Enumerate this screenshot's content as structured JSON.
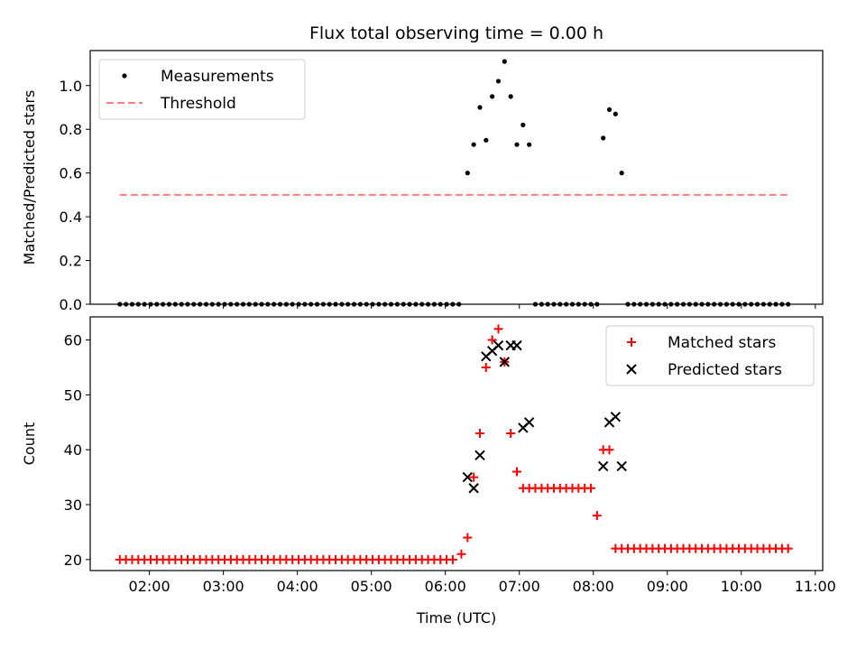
{
  "figure": {
    "title": "Flux total observing time = 0.00 h"
  },
  "chart_data": [
    {
      "type": "scatter",
      "ylabel": "Matched/Predicted stars",
      "xlim": [
        "01:12",
        "11:06"
      ],
      "ylim": [
        0,
        1.16
      ],
      "yticks": [
        0.0,
        0.2,
        0.4,
        0.6,
        0.8,
        1.0
      ],
      "ytick_labels": [
        "0.0",
        "0.2",
        "0.4",
        "0.6",
        "0.8",
        "1.0"
      ],
      "legend": {
        "placement": "top-left",
        "entries": [
          "Measurements",
          "Threshold"
        ]
      },
      "series": [
        {
          "name": "Measurements",
          "marker": "dot",
          "color": "#000000",
          "points": [
            [
              "06:18",
              0.6
            ],
            [
              "06:23",
              0.73
            ],
            [
              "06:28",
              0.9
            ],
            [
              "06:33",
              0.75
            ],
            [
              "06:38",
              0.95
            ],
            [
              "06:43",
              1.02
            ],
            [
              "06:48",
              1.11
            ],
            [
              "06:53",
              0.95
            ],
            [
              "06:58",
              0.73
            ],
            [
              "07:03",
              0.82
            ],
            [
              "07:08",
              0.73
            ],
            [
              "08:08",
              0.76
            ],
            [
              "08:13",
              0.89
            ],
            [
              "08:18",
              0.87
            ],
            [
              "08:23",
              0.6
            ]
          ],
          "zeros": {
            "ranges": [
              [
                "01:36",
                "06:13"
              ],
              [
                "07:13",
                "08:03"
              ],
              [
                "08:28",
                "10:38"
              ]
            ],
            "step_min": 5,
            "value": 0.0
          }
        },
        {
          "name": "Threshold",
          "marker": "dashed-line",
          "color": "#ff7f7f",
          "points": [
            [
              "01:36",
              0.5
            ],
            [
              "10:38",
              0.5
            ]
          ]
        }
      ]
    },
    {
      "type": "scatter",
      "xlabel": "Time (UTC)",
      "ylabel": "Count",
      "xlim": [
        "01:12",
        "11:06"
      ],
      "ylim": [
        18,
        64.2
      ],
      "xticks": [
        "02:00",
        "03:00",
        "04:00",
        "05:00",
        "06:00",
        "07:00",
        "08:00",
        "09:00",
        "10:00",
        "11:00"
      ],
      "yticks": [
        20,
        30,
        40,
        50,
        60
      ],
      "ytick_labels": [
        "20",
        "30",
        "40",
        "50",
        "60"
      ],
      "legend": {
        "placement": "top-right",
        "entries": [
          "Matched stars",
          "Predicted stars"
        ]
      },
      "series": [
        {
          "name": "Matched stars",
          "marker": "plus",
          "color": "#ff0000",
          "points": [
            [
              "06:13",
              21
            ],
            [
              "06:18",
              24
            ],
            [
              "06:23",
              35
            ],
            [
              "06:28",
              43
            ],
            [
              "06:33",
              55
            ],
            [
              "06:38",
              60
            ],
            [
              "06:43",
              62
            ],
            [
              "06:48",
              56
            ],
            [
              "06:53",
              43
            ],
            [
              "06:58",
              36
            ],
            [
              "08:03",
              28
            ],
            [
              "08:08",
              40
            ],
            [
              "08:13",
              40
            ]
          ],
          "constant_runs": [
            {
              "from": "01:36",
              "to": "06:08",
              "step_min": 5,
              "value": 20
            },
            {
              "from": "07:03",
              "to": "07:58",
              "step_min": 5,
              "value": 33
            },
            {
              "from": "08:18",
              "to": "10:38",
              "step_min": 5,
              "value": 22
            }
          ]
        },
        {
          "name": "Predicted stars",
          "marker": "x",
          "color": "#000000",
          "points": [
            [
              "06:18",
              35
            ],
            [
              "06:23",
              33
            ],
            [
              "06:28",
              39
            ],
            [
              "06:33",
              57
            ],
            [
              "06:38",
              58
            ],
            [
              "06:43",
              59
            ],
            [
              "06:48",
              56
            ],
            [
              "06:53",
              59
            ],
            [
              "06:58",
              59
            ],
            [
              "07:03",
              44
            ],
            [
              "07:08",
              45
            ],
            [
              "08:08",
              37
            ],
            [
              "08:13",
              45
            ],
            [
              "08:18",
              46
            ],
            [
              "08:23",
              37
            ]
          ]
        }
      ]
    }
  ]
}
